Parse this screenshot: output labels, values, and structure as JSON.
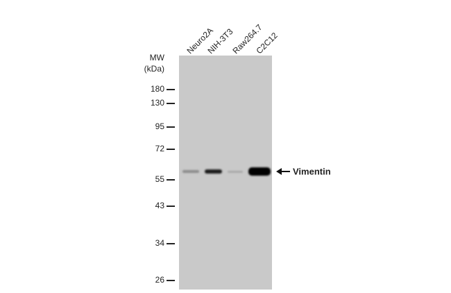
{
  "mw_label": "MW",
  "mw_unit": "(kDa)",
  "markers": [
    "180",
    "130",
    "95",
    "72",
    "55",
    "43",
    "34",
    "26"
  ],
  "lanes": [
    "Neuro2A",
    "NIH-3T3",
    "Raw264.7",
    "C2C12"
  ],
  "target": "Vimentin"
}
